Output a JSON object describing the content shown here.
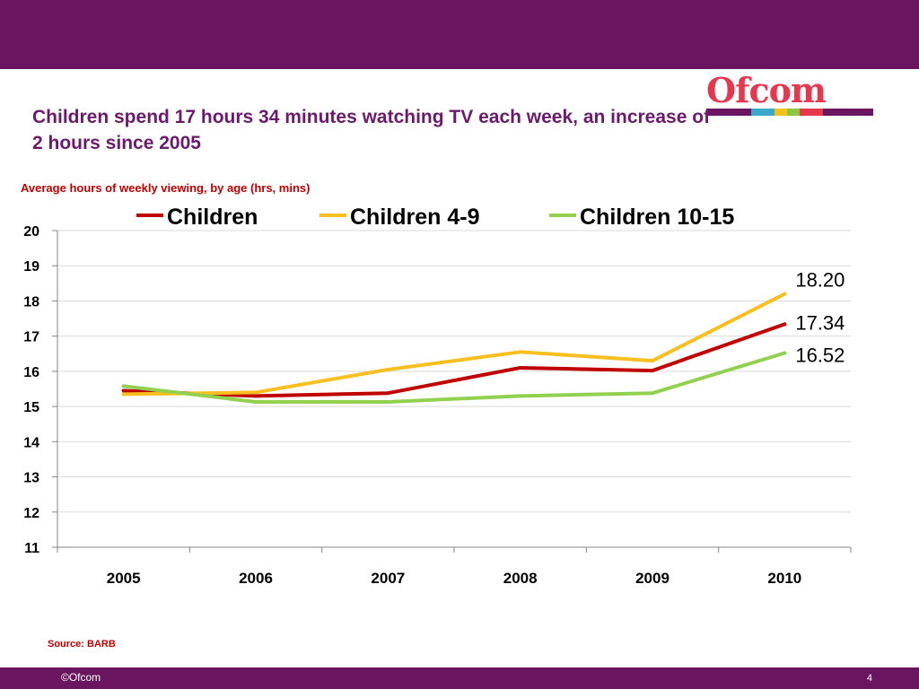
{
  "slide": {
    "title": "Children spend 17 hours 34 minutes watching TV each week, an increase of  2 hours since 2005",
    "subtitle": "Average hours of weekly viewing, by age (hrs, mins)",
    "source": "Source: BARB",
    "copyright": "©Ofcom",
    "page_number": "4",
    "logo_text": "Ofcom",
    "colors": {
      "bar": "#6b1560",
      "title": "#6b1a6d",
      "accent_red": "#c00000",
      "logo": "#e5384e"
    },
    "logo_stripes": [
      "#6b1560",
      "#3aa8c9",
      "#f4c21b",
      "#8dc63f",
      "#e5384e",
      "#6b1560"
    ]
  },
  "chart_data": {
    "type": "line",
    "title": "",
    "xlabel": "",
    "ylabel": "",
    "categories": [
      "2005",
      "2006",
      "2007",
      "2008",
      "2009",
      "2010"
    ],
    "ylim": [
      11,
      20
    ],
    "yticks": [
      20,
      19,
      18,
      17,
      16,
      15,
      14,
      13,
      12,
      11
    ],
    "grid": true,
    "legend": "top",
    "series": [
      {
        "name": "Children",
        "color": "#c00000",
        "values": [
          15.45,
          15.3,
          15.38,
          16.1,
          16.02,
          17.34
        ]
      },
      {
        "name": "Children 4-9",
        "color": "#f8bf1e",
        "values": [
          15.35,
          15.4,
          16.05,
          16.55,
          16.3,
          18.2
        ]
      },
      {
        "name": "Children 10-15",
        "color": "#92d050",
        "values": [
          15.58,
          15.13,
          15.13,
          15.3,
          15.38,
          16.52
        ]
      }
    ],
    "annotations": [
      {
        "series": "Children 4-9",
        "label": "18.20"
      },
      {
        "series": "Children",
        "label": "17.34"
      },
      {
        "series": "Children 10-15",
        "label": "16.52"
      }
    ]
  }
}
